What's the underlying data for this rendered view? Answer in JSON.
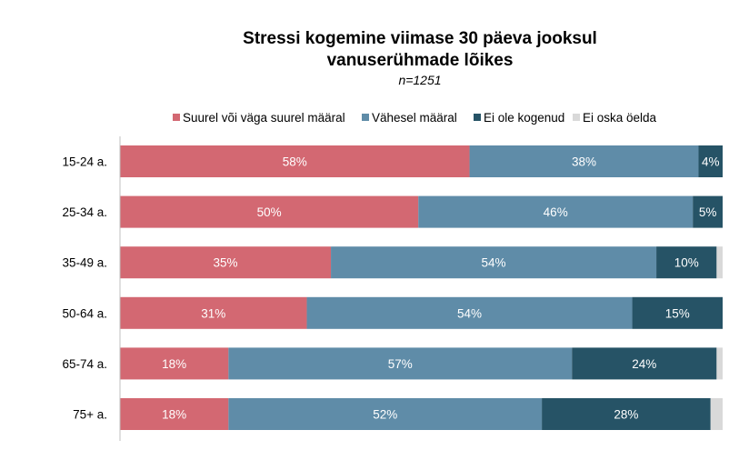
{
  "chart_data": {
    "type": "bar",
    "orientation": "horizontal",
    "stacked": true,
    "title": "Stressi kogemine viimase 30 päeva jooksul",
    "title_line2": "vanuserühmade lõikes",
    "subtitle": "n=1251",
    "xlabel": "",
    "ylabel": "",
    "xlim": [
      0,
      100
    ],
    "legend_position": "top",
    "categories": [
      "15-24 a.",
      "25-34 a.",
      "35-49 a.",
      "50-64 a.",
      "65-74 a.",
      "75+ a."
    ],
    "series": [
      {
        "name": "Suurel või väga suurel määral",
        "color": "#D36872",
        "values": [
          58,
          50,
          35,
          31,
          18,
          18
        ],
        "labels": [
          "58%",
          "50%",
          "35%",
          "31%",
          "18%",
          "18%"
        ]
      },
      {
        "name": "Vähesel määral",
        "color": "#5F8CA8",
        "values": [
          38,
          46,
          54,
          54,
          57,
          52
        ],
        "labels": [
          "38%",
          "46%",
          "54%",
          "54%",
          "57%",
          "52%"
        ]
      },
      {
        "name": "Ei ole kogenud",
        "color": "#265366",
        "values": [
          4,
          5,
          10,
          15,
          24,
          28
        ],
        "labels": [
          "4%",
          "5%",
          "10%",
          "15%",
          "24%",
          "28%"
        ]
      },
      {
        "name": "Ei oska öelda",
        "color": "#D9D9D9",
        "values": [
          0,
          0,
          1,
          0,
          1,
          2
        ],
        "labels": [
          "",
          "",
          "",
          "",
          "",
          ""
        ]
      }
    ]
  }
}
